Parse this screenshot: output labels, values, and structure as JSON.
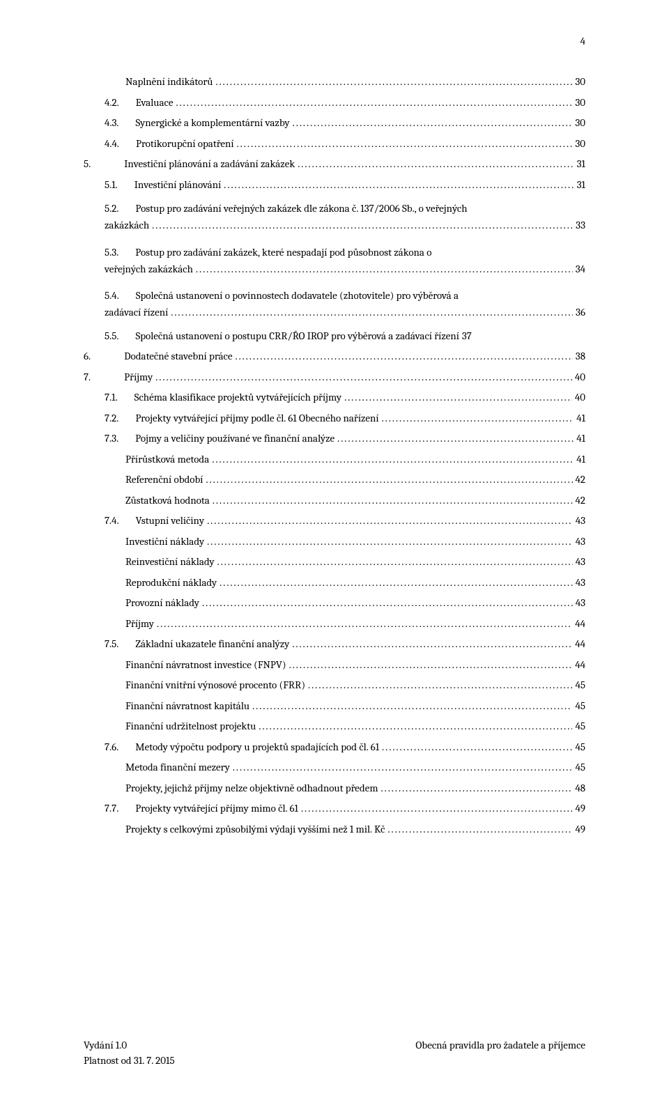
{
  "page_number_top": "4",
  "toc": [
    {
      "type": "single",
      "cls": "lvl-sub",
      "num": "",
      "title": "Naplnění indikátorů",
      "page": "30"
    },
    {
      "type": "single",
      "cls": "lvl-2",
      "num": "4.2.",
      "title": "Evaluace",
      "page": "30"
    },
    {
      "type": "single",
      "cls": "lvl-2",
      "num": "4.3.",
      "title": "Synergické a komplementární vazby",
      "page": "30"
    },
    {
      "type": "single",
      "cls": "lvl-2",
      "num": "4.4.",
      "title": "Protikorupční opatření",
      "page": "30"
    },
    {
      "type": "single",
      "cls": "lvl-1",
      "num": "5.",
      "num_narrow": true,
      "title": "Investiční plánování a zadávání zakázek",
      "page": "31"
    },
    {
      "type": "single",
      "cls": "lvl-2",
      "num": "5.1.",
      "title": "Investiční plánování",
      "page": "31"
    },
    {
      "type": "wrap",
      "cls": "lvl-2",
      "num": "5.2.",
      "line1": "Postup pro zadávání veřejných zakázek dle zákona č. 137/2006 Sb., o veřejných",
      "line2": "zakázkách",
      "page": "33"
    },
    {
      "type": "wrap",
      "cls": "lvl-2",
      "num": "5.3.",
      "line1": "Postup pro zadávání zakázek, které nespadají pod působnost  zákona o",
      "line2": "veřejných zakázkách",
      "page": "34"
    },
    {
      "type": "wrap",
      "cls": "lvl-2",
      "num": "5.4.",
      "line1": "Společná ustanovení o povinnostech dodavatele (zhotovitele) pro výběrová a",
      "line2": "zadávací řízení",
      "page": "36"
    },
    {
      "type": "noleader",
      "cls": "lvl-2",
      "num": "5.5.",
      "title": "Společná ustanovení o postupu CRR/ŘO IROP pro výběrová a zadávací řízení",
      "page": "37"
    },
    {
      "type": "single",
      "cls": "lvl-1",
      "num": "6.",
      "num_narrow": true,
      "title": "Dodatečné stavební práce",
      "page": "38"
    },
    {
      "type": "single",
      "cls": "lvl-1",
      "num": "7.",
      "num_narrow": true,
      "title": "Příjmy",
      "page": "40"
    },
    {
      "type": "single",
      "cls": "lvl-2",
      "num": "7.1.",
      "title": "Schéma klasifikace projektů vytvářejících příjmy",
      "page": "40"
    },
    {
      "type": "single",
      "cls": "lvl-2",
      "num": "7.2.",
      "title": "Projekty vytvářející příjmy podle čl. 61 Obecného nařízení",
      "page": "41"
    },
    {
      "type": "single",
      "cls": "lvl-2",
      "num": "7.3.",
      "title": "Pojmy a veličiny používané ve finanční analýze",
      "page": "41"
    },
    {
      "type": "single",
      "cls": "lvl-sub",
      "num": "",
      "title": "Přírůstková metoda",
      "page": "41"
    },
    {
      "type": "single",
      "cls": "lvl-sub",
      "num": "",
      "title": "Referenční období",
      "page": "42"
    },
    {
      "type": "single",
      "cls": "lvl-sub",
      "num": "",
      "title": "Zůstatková hodnota",
      "page": "42"
    },
    {
      "type": "single",
      "cls": "lvl-2",
      "num": "7.4.",
      "title": "Vstupní veličiny",
      "page": "43"
    },
    {
      "type": "single",
      "cls": "lvl-sub",
      "num": "",
      "title": "Investiční náklady",
      "page": "43"
    },
    {
      "type": "single",
      "cls": "lvl-sub",
      "num": "",
      "title": "Reinvestiční náklady",
      "page": "43"
    },
    {
      "type": "single",
      "cls": "lvl-sub",
      "num": "",
      "title": "Reprodukční náklady",
      "page": "43"
    },
    {
      "type": "single",
      "cls": "lvl-sub",
      "num": "",
      "title": "Provozní náklady",
      "page": "43"
    },
    {
      "type": "single",
      "cls": "lvl-sub",
      "num": "",
      "title": "Příjmy",
      "page": "44"
    },
    {
      "type": "single",
      "cls": "lvl-2",
      "num": "7.5.",
      "title": "Základní ukazatele finanční analýzy",
      "page": "44"
    },
    {
      "type": "single",
      "cls": "lvl-sub",
      "num": "",
      "title": "Finanční návratnost investice (FNPV)",
      "page": "44"
    },
    {
      "type": "single",
      "cls": "lvl-sub",
      "num": "",
      "title": "Finanční vnitřní výnosové procento (FRR)",
      "page": "45"
    },
    {
      "type": "single",
      "cls": "lvl-sub",
      "num": "",
      "title": "Finanční návratnost kapitálu",
      "page": "45"
    },
    {
      "type": "single",
      "cls": "lvl-sub",
      "num": "",
      "title": "Finanční udržitelnost projektu",
      "page": "45"
    },
    {
      "type": "single",
      "cls": "lvl-2",
      "num": "7.6.",
      "title": "Metody výpočtu podpory u projektů spadajících pod čl. 61",
      "page": "45"
    },
    {
      "type": "single",
      "cls": "lvl-sub",
      "num": "",
      "title": "Metoda finanční mezery",
      "page": "45"
    },
    {
      "type": "single",
      "cls": "lvl-sub",
      "num": "",
      "title": "Projekty, jejichž příjmy nelze objektivně odhadnout předem",
      "page": "48"
    },
    {
      "type": "single",
      "cls": "lvl-2",
      "num": "7.7.",
      "title": "Projekty vytvářející příjmy mimo čl. 61",
      "page": "49"
    },
    {
      "type": "single",
      "cls": "lvl-sub",
      "num": "",
      "title": "Projekty s celkovými způsobilými výdaji vyššími než 1 mil. Kč",
      "page": "49"
    }
  ],
  "footer": {
    "left_top": "Vydání 1.0",
    "right_top": "Obecná pravidla pro žadatele a příjemce",
    "left_bottom": "Platnost od 31. 7. 2015"
  }
}
